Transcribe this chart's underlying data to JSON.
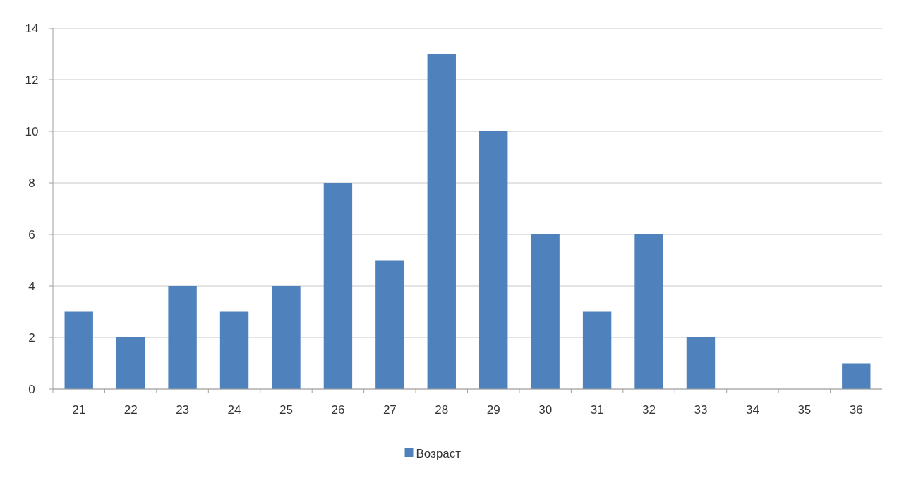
{
  "chart_data": {
    "type": "bar",
    "categories": [
      "21",
      "22",
      "23",
      "24",
      "25",
      "26",
      "27",
      "28",
      "29",
      "30",
      "31",
      "32",
      "33",
      "34",
      "35",
      "36"
    ],
    "series": [
      {
        "name": "Возраст",
        "color": "#4f81bd",
        "values": [
          3,
          2,
          4,
          3,
          4,
          8,
          5,
          13,
          10,
          6,
          3,
          6,
          2,
          0,
          0,
          1
        ]
      }
    ],
    "ylim": [
      0,
      14
    ],
    "yticks": [
      0,
      2,
      4,
      6,
      8,
      10,
      12,
      14
    ],
    "grid": "y",
    "legend": "bottom"
  }
}
